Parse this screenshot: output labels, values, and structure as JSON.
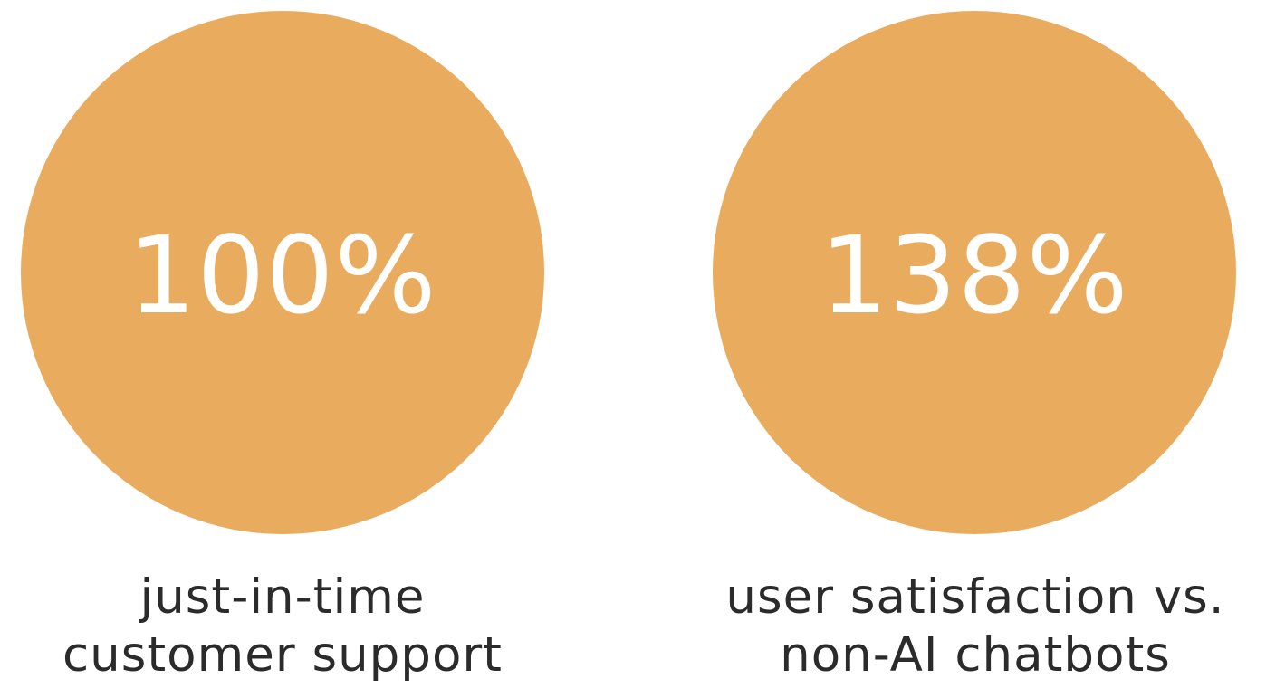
{
  "theme": {
    "circle_color": "#E9AB5E",
    "value_color": "#FFFFFF",
    "caption_color": "#2B2B2B"
  },
  "stats": [
    {
      "value": "100%",
      "caption_line1": "just-in-time",
      "caption_line2": "customer support"
    },
    {
      "value": "138%",
      "caption_line1": "user satisfaction vs.",
      "caption_line2": "non-AI chatbots"
    }
  ]
}
